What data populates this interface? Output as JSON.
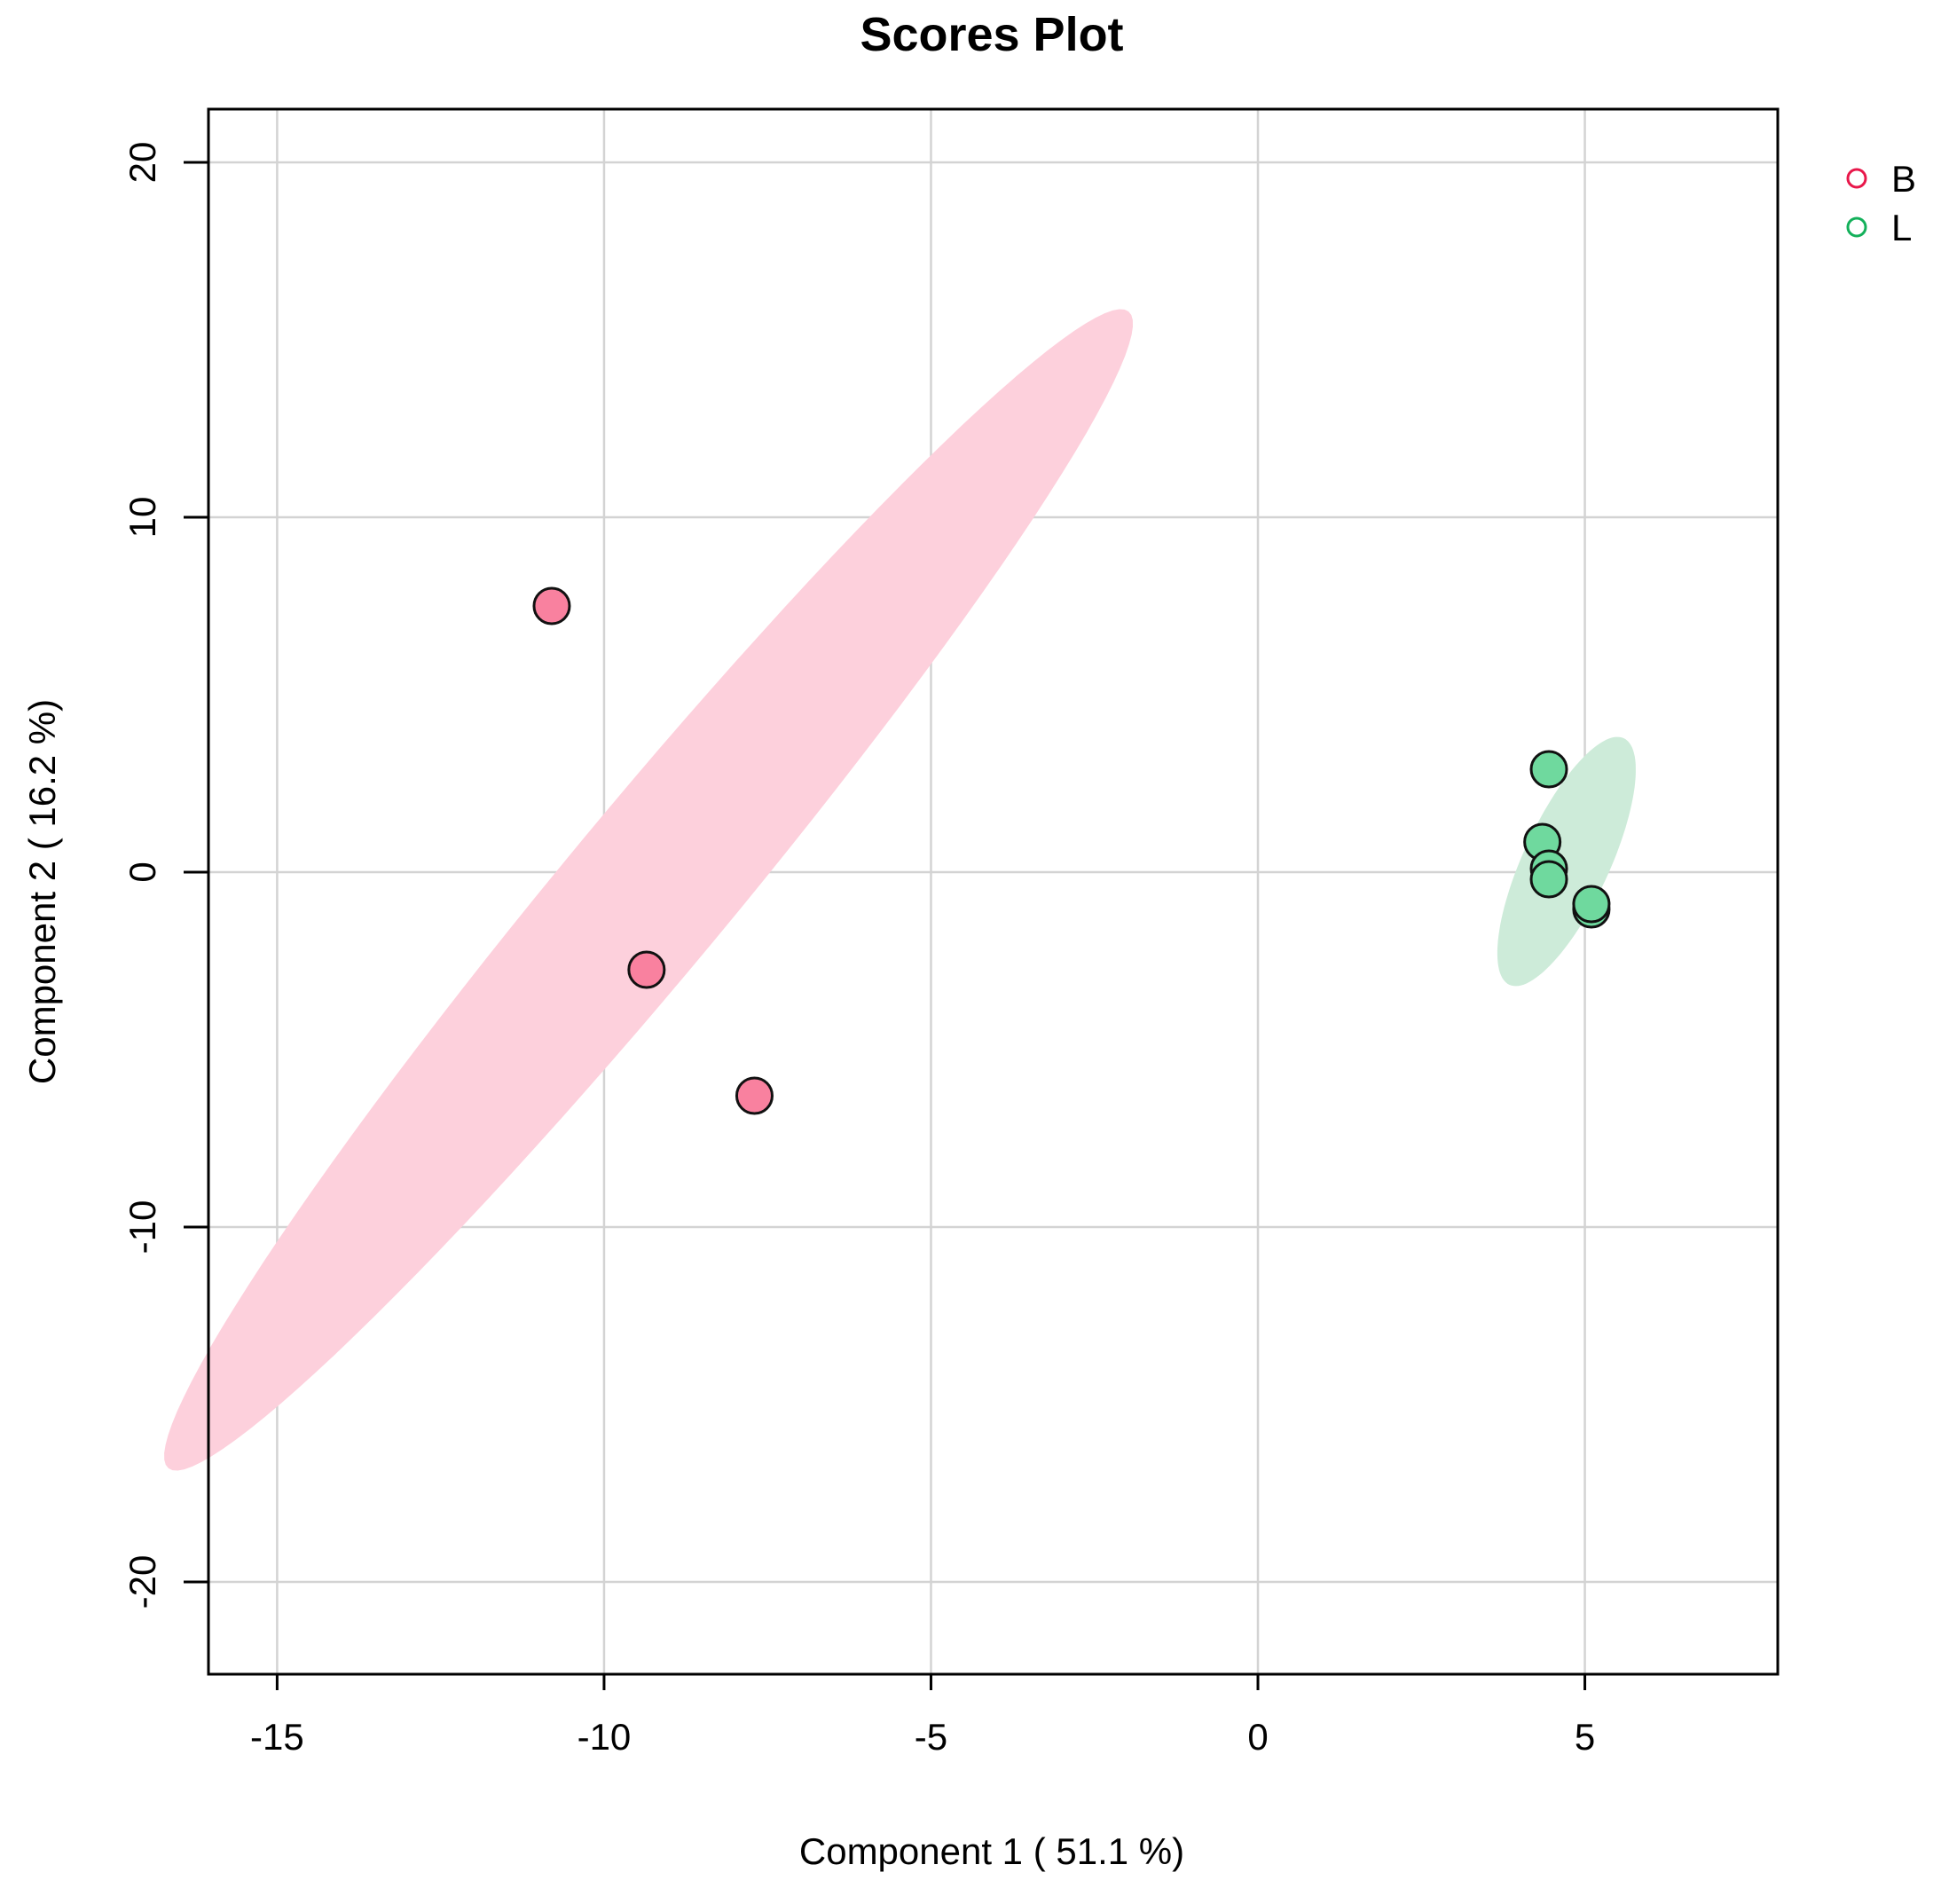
{
  "chart_data": {
    "type": "scatter",
    "title": "Scores Plot",
    "xlabel": "Component 1 ( 51.1 %)",
    "ylabel": "Component 2 ( 16.2 %)",
    "xlim": [
      -16.05,
      7.95
    ],
    "ylim": [
      -22.6,
      21.5
    ],
    "xticks": [
      -15,
      -10,
      -5,
      0,
      5
    ],
    "yticks": [
      -20,
      -10,
      0,
      10,
      20
    ],
    "grid": true,
    "legend_position": "top-right, outside plot",
    "series": [
      {
        "name": "B",
        "color": "#e8174a",
        "fill": "#f9819f",
        "ellipse_fill": "#fdd0dc",
        "points": [
          {
            "x": -10.8,
            "y": 7.5
          },
          {
            "x": -9.35,
            "y": -2.75
          },
          {
            "x": -7.7,
            "y": -6.3
          }
        ],
        "ellipse": {
          "cx": -9.32,
          "cy": -0.5,
          "rx": 17.9,
          "ry": 1.5,
          "angle_deg": 66
        }
      },
      {
        "name": "L",
        "color": "#13b05a",
        "fill": "#6fd99e",
        "ellipse_fill": "#cdebd9",
        "points": [
          {
            "x": 4.45,
            "y": 2.9
          },
          {
            "x": 4.35,
            "y": 0.85
          },
          {
            "x": 4.45,
            "y": 0.1
          },
          {
            "x": 4.45,
            "y": -0.2
          },
          {
            "x": 5.1,
            "y": -1.05
          },
          {
            "x": 5.1,
            "y": -0.9
          }
        ],
        "ellipse": {
          "cx": 4.72,
          "cy": 0.3,
          "rx": 3.6,
          "ry": 0.7,
          "angle_deg": 77
        }
      }
    ]
  }
}
